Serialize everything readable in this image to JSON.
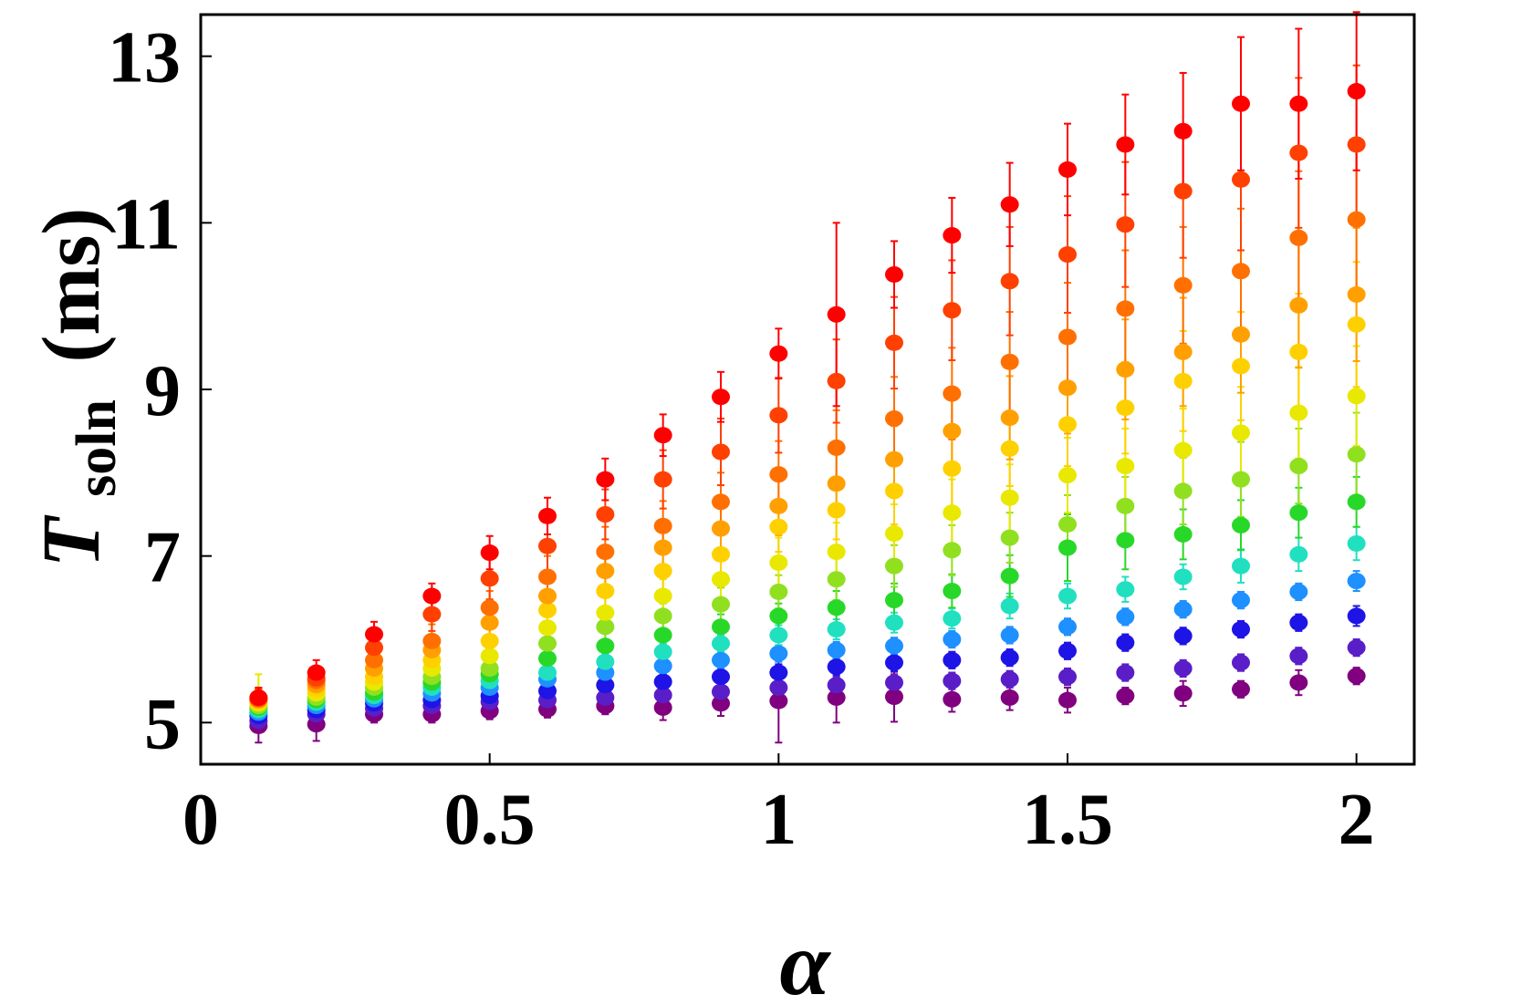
{
  "chart_data": {
    "type": "scatter",
    "xlabel": "α",
    "ylabel": {
      "symbol": "T",
      "subscript": "soln",
      "unit": "(ms)"
    },
    "xlim": [
      0,
      2.1
    ],
    "ylim": [
      4.5,
      13.5
    ],
    "x_ticks": [
      {
        "value": 0,
        "label": "0"
      },
      {
        "value": 0.5,
        "label": "0.5"
      },
      {
        "value": 1,
        "label": "1"
      },
      {
        "value": 1.5,
        "label": "1.5"
      },
      {
        "value": 2,
        "label": "2"
      }
    ],
    "y_ticks": [
      {
        "value": 5,
        "label": "5"
      },
      {
        "value": 7,
        "label": "7"
      },
      {
        "value": 9,
        "label": "9"
      },
      {
        "value": 11,
        "label": "11"
      },
      {
        "value": 13,
        "label": "13"
      }
    ],
    "grid": false,
    "legend": "none",
    "x": [
      0.1,
      0.2,
      0.3,
      0.4,
      0.5,
      0.6,
      0.7,
      0.8,
      0.9,
      1.0,
      1.1,
      1.2,
      1.3,
      1.4,
      1.5,
      1.6,
      1.7,
      1.8,
      1.9,
      2.0
    ],
    "series": [
      {
        "color": "#800080",
        "values": [
          4.96,
          4.98,
          5.1,
          5.1,
          5.14,
          5.16,
          5.2,
          5.18,
          5.23,
          5.26,
          5.3,
          5.31,
          5.28,
          5.3,
          5.27,
          5.32,
          5.35,
          5.4,
          5.48,
          5.56
        ],
        "errors": [
          0.2,
          0.2,
          0.1,
          0.1,
          0.1,
          0.1,
          0.1,
          0.15,
          0.15,
          0.5,
          0.3,
          0.3,
          0.15,
          0.15,
          0.15,
          0.1,
          0.15,
          0.1,
          0.15,
          0.1
        ]
      },
      {
        "color": "#5a1ec8",
        "values": [
          5.02,
          5.1,
          5.17,
          5.2,
          5.25,
          5.27,
          5.3,
          5.33,
          5.37,
          5.42,
          5.45,
          5.48,
          5.5,
          5.52,
          5.55,
          5.6,
          5.65,
          5.72,
          5.8,
          5.9
        ],
        "errors": [
          0.1,
          0.1,
          0.1,
          0.1,
          0.1,
          0.1,
          0.1,
          0.1,
          0.1,
          0.1,
          0.1,
          0.1,
          0.1,
          0.1,
          0.1,
          0.1,
          0.1,
          0.1,
          0.1,
          0.1
        ]
      },
      {
        "color": "#1e14e6",
        "values": [
          5.08,
          5.15,
          5.23,
          5.27,
          5.32,
          5.38,
          5.45,
          5.49,
          5.55,
          5.6,
          5.67,
          5.72,
          5.75,
          5.78,
          5.86,
          5.96,
          6.04,
          6.12,
          6.2,
          6.28
        ],
        "errors": [
          0.1,
          0.1,
          0.1,
          0.1,
          0.1,
          0.1,
          0.1,
          0.1,
          0.1,
          0.1,
          0.1,
          0.1,
          0.1,
          0.1,
          0.1,
          0.1,
          0.1,
          0.1,
          0.1,
          0.12
        ]
      },
      {
        "color": "#1e90ff",
        "values": [
          5.12,
          5.2,
          5.28,
          5.35,
          5.42,
          5.52,
          5.6,
          5.68,
          5.75,
          5.83,
          5.87,
          5.92,
          6.0,
          6.05,
          6.15,
          6.27,
          6.36,
          6.47,
          6.57,
          6.7
        ],
        "errors": [
          0.1,
          0.1,
          0.1,
          0.1,
          0.1,
          0.1,
          0.1,
          0.1,
          0.1,
          0.1,
          0.1,
          0.1,
          0.1,
          0.1,
          0.1,
          0.1,
          0.1,
          0.1,
          0.1,
          0.12
        ]
      },
      {
        "color": "#20e0c0",
        "values": [
          5.15,
          5.24,
          5.32,
          5.42,
          5.5,
          5.6,
          5.73,
          5.85,
          5.95,
          6.05,
          6.12,
          6.2,
          6.25,
          6.4,
          6.52,
          6.6,
          6.75,
          6.88,
          7.02,
          7.15
        ],
        "errors": [
          0.1,
          0.1,
          0.1,
          0.1,
          0.1,
          0.1,
          0.1,
          0.1,
          0.1,
          0.12,
          0.12,
          0.12,
          0.12,
          0.15,
          0.15,
          0.15,
          0.15,
          0.2,
          0.2,
          0.2
        ]
      },
      {
        "color": "#28d828",
        "values": [
          5.18,
          5.27,
          5.36,
          5.48,
          5.58,
          5.77,
          5.92,
          6.05,
          6.15,
          6.28,
          6.38,
          6.47,
          6.58,
          6.76,
          7.1,
          7.19,
          7.26,
          7.37,
          7.52,
          7.65
        ],
        "errors": [
          0.1,
          0.1,
          0.1,
          0.1,
          0.12,
          0.12,
          0.15,
          0.15,
          0.15,
          0.15,
          0.2,
          0.2,
          0.2,
          0.25,
          0.4,
          0.35,
          0.3,
          0.3,
          0.3,
          0.3
        ]
      },
      {
        "color": "#90e020",
        "values": [
          5.2,
          5.3,
          5.42,
          5.55,
          5.65,
          5.95,
          6.15,
          6.28,
          6.42,
          6.57,
          6.72,
          6.88,
          7.07,
          7.22,
          7.38,
          7.6,
          7.78,
          7.92,
          8.08,
          8.22
        ],
        "errors": [
          0.1,
          0.1,
          0.1,
          0.12,
          0.12,
          0.15,
          0.15,
          0.15,
          0.2,
          0.2,
          0.25,
          0.25,
          0.3,
          0.3,
          0.35,
          0.35,
          0.4,
          0.45,
          0.45,
          0.5
        ]
      },
      {
        "color": "#e8e800",
        "values": [
          5.23,
          5.35,
          5.48,
          5.65,
          5.8,
          6.14,
          6.32,
          6.52,
          6.72,
          6.92,
          7.05,
          7.27,
          7.52,
          7.7,
          7.97,
          8.08,
          8.27,
          8.48,
          8.72,
          8.92
        ],
        "errors": [
          0.35,
          0.12,
          0.12,
          0.15,
          0.15,
          0.2,
          0.2,
          0.2,
          0.25,
          0.3,
          0.35,
          0.35,
          0.4,
          0.4,
          0.45,
          0.45,
          0.5,
          0.55,
          0.55,
          0.6
        ]
      },
      {
        "color": "#ffd000",
        "values": [
          5.25,
          5.4,
          5.55,
          5.75,
          5.98,
          6.35,
          6.58,
          6.82,
          7.02,
          7.35,
          7.55,
          7.78,
          8.05,
          8.29,
          8.58,
          8.78,
          9.1,
          9.28,
          9.45,
          9.78
        ],
        "errors": [
          0.15,
          0.12,
          0.15,
          0.15,
          0.2,
          0.2,
          0.2,
          0.25,
          0.3,
          0.3,
          0.35,
          0.4,
          0.45,
          0.45,
          0.5,
          0.55,
          0.6,
          0.65,
          0.7,
          0.75
        ]
      },
      {
        "color": "#ffa000",
        "values": [
          5.27,
          5.45,
          5.65,
          5.87,
          6.2,
          6.52,
          6.82,
          7.1,
          7.33,
          7.6,
          7.87,
          8.16,
          8.5,
          8.66,
          9.02,
          9.24,
          9.45,
          9.66,
          10.01,
          10.14
        ],
        "errors": [
          0.12,
          0.12,
          0.15,
          0.15,
          0.2,
          0.2,
          0.25,
          0.3,
          0.3,
          0.35,
          0.4,
          0.4,
          0.45,
          0.5,
          0.55,
          0.6,
          0.65,
          0.7,
          0.75,
          0.8
        ]
      },
      {
        "color": "#ff7000",
        "values": [
          5.28,
          5.5,
          5.75,
          5.98,
          6.38,
          6.75,
          7.05,
          7.36,
          7.65,
          7.98,
          8.3,
          8.65,
          8.95,
          9.33,
          9.63,
          9.97,
          10.25,
          10.42,
          10.82,
          11.04
        ],
        "errors": [
          0.12,
          0.12,
          0.15,
          0.2,
          0.2,
          0.25,
          0.3,
          0.3,
          0.35,
          0.4,
          0.45,
          0.5,
          0.55,
          0.6,
          0.65,
          0.7,
          0.7,
          0.75,
          0.8,
          0.85
        ]
      },
      {
        "color": "#ff4000",
        "values": [
          5.29,
          5.53,
          5.9,
          6.3,
          6.73,
          7.12,
          7.5,
          7.92,
          8.25,
          8.69,
          9.1,
          9.56,
          9.95,
          10.3,
          10.62,
          10.98,
          11.38,
          11.52,
          11.84,
          11.94
        ],
        "errors": [
          0.12,
          0.12,
          0.15,
          0.2,
          0.25,
          0.3,
          0.3,
          0.35,
          0.4,
          0.45,
          0.5,
          0.55,
          0.6,
          0.65,
          0.7,
          0.75,
          0.8,
          0.85,
          0.9,
          0.95
        ]
      },
      {
        "color": "#ff0000",
        "values": [
          5.3,
          5.6,
          6.06,
          6.52,
          7.04,
          7.48,
          7.92,
          8.45,
          8.91,
          9.43,
          9.9,
          10.38,
          10.85,
          11.22,
          11.64,
          11.94,
          12.1,
          12.43,
          12.43,
          12.58
        ],
        "errors": [
          0.12,
          0.15,
          0.15,
          0.15,
          0.2,
          0.22,
          0.25,
          0.25,
          0.3,
          0.3,
          1.1,
          0.4,
          0.45,
          0.5,
          0.55,
          0.6,
          0.7,
          0.8,
          0.9,
          0.95
        ]
      }
    ]
  }
}
